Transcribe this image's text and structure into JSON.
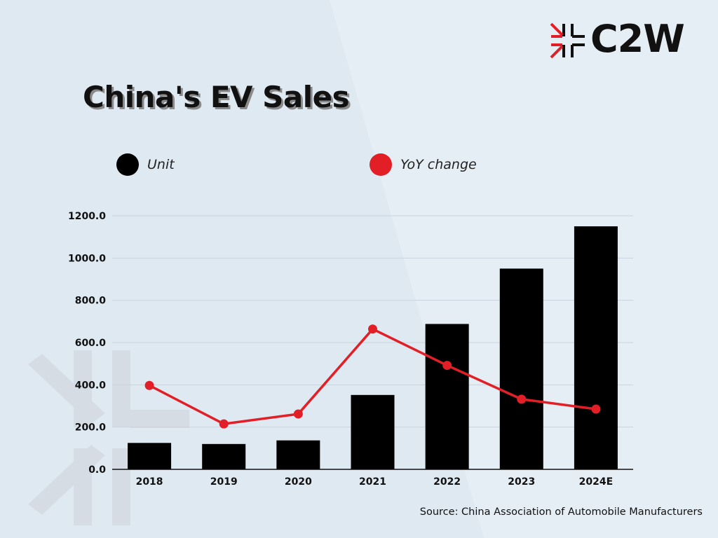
{
  "logo": {
    "text": "C2W"
  },
  "title": "China's EV Sales",
  "legend": [
    {
      "label": "Unit",
      "color": "#000000",
      "icon": "black-circle-icon"
    },
    {
      "label": "YoY change",
      "color": "#e21f26",
      "icon": "red-circle-icon"
    }
  ],
  "source": "Source: China Association of Automobile Manufacturers",
  "colors": {
    "bar": "#000000",
    "line": "#e21f26",
    "grid": "#c9d3dc",
    "background": "#dfe9f2"
  },
  "chart_data": {
    "type": "bar",
    "categories": [
      "2018",
      "2019",
      "2020",
      "2021",
      "2022",
      "2023",
      "2024E"
    ],
    "series": [
      {
        "name": "Unit",
        "type": "bar",
        "values": [
          125,
          120,
          137,
          352,
          688,
          950,
          1150
        ]
      },
      {
        "name": "YoY change",
        "type": "line",
        "values": [
          397,
          215,
          262,
          664,
          492,
          332,
          285
        ]
      }
    ],
    "yticks": [
      "0.0",
      "200.0",
      "400.0",
      "600.0",
      "800.0",
      "1000.0",
      "1200.0"
    ],
    "ylim": [
      0,
      1200
    ],
    "grid": true,
    "legend_position": "top-left"
  }
}
